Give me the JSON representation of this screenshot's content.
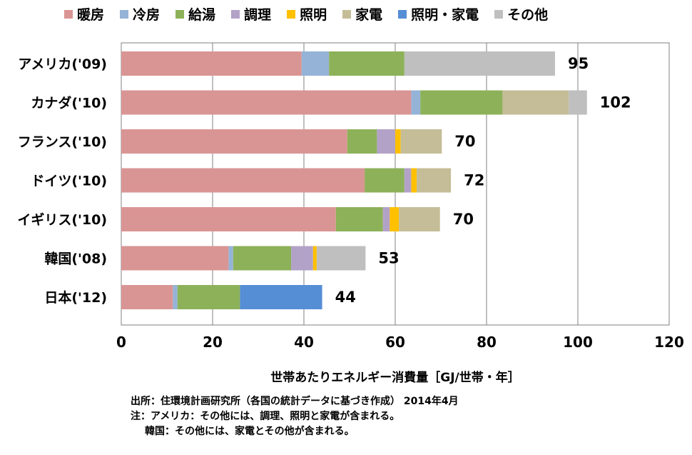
{
  "chart_data": {
    "type": "bar",
    "orientation": "horizontal",
    "stacked": true,
    "title": "",
    "xlabel": "世帯あたりエネルギー消費量［GJ/世帯・年］",
    "ylabel": "",
    "xlim": [
      0,
      120
    ],
    "xticks": [
      "0",
      "20",
      "40",
      "60",
      "80",
      "100",
      "120"
    ],
    "grid": true,
    "legend_position": "top",
    "categories": [
      "アメリカ('09)",
      "カナダ('10)",
      "フランス('10)",
      "ドイツ('10)",
      "イギリス('10)",
      "韓国('08)",
      "日本('12)"
    ],
    "totals": [
      "95",
      "102",
      "70",
      "72",
      "70",
      "53",
      "44"
    ],
    "series": [
      {
        "name": "暖房",
        "color": "#d99594",
        "values": [
          39.5,
          63.5,
          49.5,
          53.3,
          47.0,
          23.5,
          11.3
        ]
      },
      {
        "name": "冷房",
        "color": "#95b3d7",
        "values": [
          6.0,
          2.0,
          0,
          0,
          0,
          1.0,
          1.0
        ]
      },
      {
        "name": "給湯",
        "color": "#8db159",
        "values": [
          16.5,
          18.0,
          6.5,
          8.7,
          10.3,
          12.7,
          13.7
        ]
      },
      {
        "name": "調理",
        "color": "#b3a2c7",
        "values": [
          0,
          0,
          4.0,
          1.5,
          1.5,
          4.8,
          0
        ]
      },
      {
        "name": "照明",
        "color": "#ffc000",
        "values": [
          0,
          0,
          1.2,
          1.2,
          2.0,
          0.8,
          0
        ]
      },
      {
        "name": "家電",
        "color": "#c4bd97",
        "values": [
          0,
          14.5,
          9.0,
          7.5,
          9.0,
          0,
          0
        ]
      },
      {
        "name": "照明・家電",
        "color": "#558ed5",
        "values": [
          0,
          0,
          0,
          0,
          0,
          0,
          18.0
        ]
      },
      {
        "name": "その他",
        "color": "#bfbfbf",
        "values": [
          33.0,
          4.0,
          0,
          0,
          0,
          10.7,
          0
        ]
      }
    ]
  },
  "notes": {
    "source": "出所：住環境計画研究所（各国の統計データに基づき作成） 2014年4月",
    "note1": "注：アメリカ：その他には、調理、照明と家電が含まれる。",
    "note2": "韓国：その他には、家電とその他が含まれる。"
  }
}
